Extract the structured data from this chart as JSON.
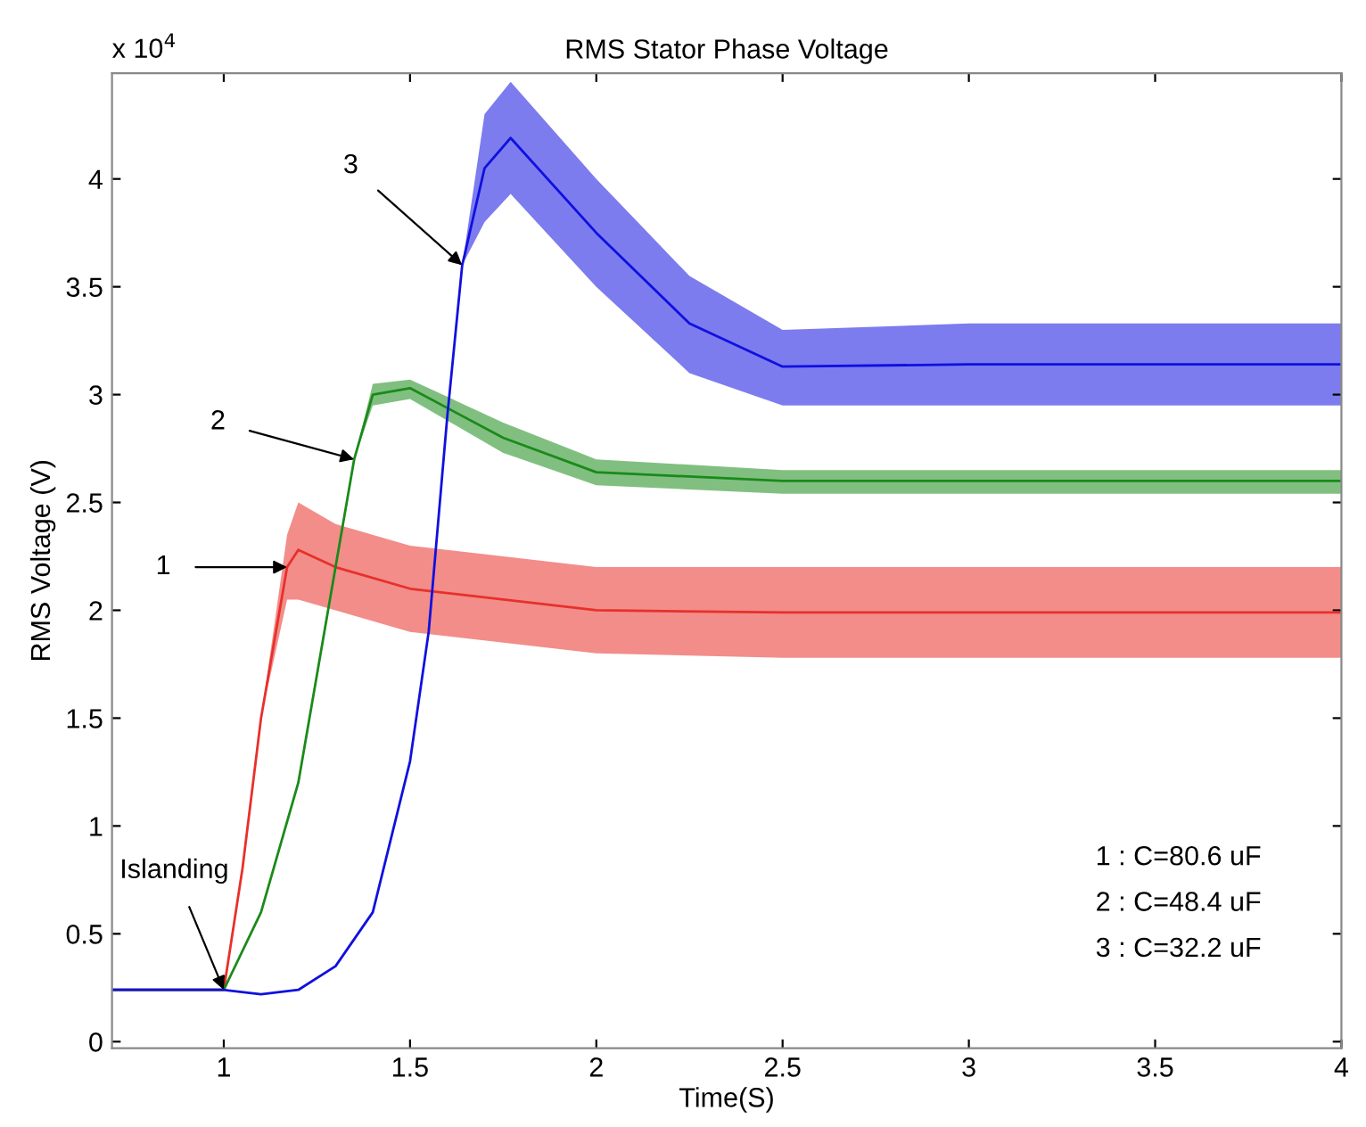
{
  "chart_data": {
    "type": "line",
    "title": "RMS Stator Phase Voltage",
    "xlabel": "Time(S)",
    "ylabel": "RMS Voltage (V)",
    "xlim": [
      0.7,
      4
    ],
    "xticks": [
      1,
      1.5,
      2,
      2.5,
      3,
      3.5,
      4
    ],
    "ylim": [
      -0.03,
      4.49
    ],
    "yticks": [
      0,
      0.5,
      1,
      1.5,
      2,
      2.5,
      3,
      3.5,
      4
    ],
    "grid": false,
    "legend": false,
    "marker": "none",
    "line_style": "solid",
    "series": [
      {
        "color": "#e8302a",
        "x": [
          0.7,
          1.0,
          1.05,
          1.1,
          1.17,
          1.2,
          1.3,
          1.5,
          2.0,
          2.5,
          3.0,
          3.5,
          4.0
        ],
        "values": [
          0.24,
          0.24,
          0.8,
          1.5,
          2.2,
          2.28,
          2.2,
          2.1,
          2.0,
          1.99,
          1.99,
          1.99,
          1.99
        ],
        "lower": [
          0.24,
          0.24,
          0.8,
          1.5,
          2.05,
          2.05,
          2.0,
          1.9,
          1.8,
          1.78,
          1.78,
          1.78,
          1.78
        ],
        "upper": [
          0.24,
          0.24,
          0.8,
          1.5,
          2.35,
          2.5,
          2.4,
          2.3,
          2.2,
          2.2,
          2.2,
          2.2,
          2.2
        ]
      },
      {
        "color": "#1a8a1a",
        "x": [
          0.7,
          1.0,
          1.1,
          1.2,
          1.25,
          1.3,
          1.35,
          1.4,
          1.5,
          1.75,
          2.0,
          2.5,
          3.0,
          3.5,
          4.0
        ],
        "values": [
          0.24,
          0.24,
          0.6,
          1.2,
          1.7,
          2.2,
          2.7,
          3.0,
          3.03,
          2.8,
          2.64,
          2.6,
          2.6,
          2.6,
          2.6
        ],
        "lower": [
          0.24,
          0.24,
          0.6,
          1.2,
          1.7,
          2.2,
          2.7,
          2.95,
          2.98,
          2.73,
          2.58,
          2.54,
          2.54,
          2.54,
          2.54
        ],
        "upper": [
          0.24,
          0.24,
          0.6,
          1.2,
          1.7,
          2.2,
          2.7,
          3.05,
          3.07,
          2.87,
          2.7,
          2.65,
          2.65,
          2.65,
          2.65
        ]
      },
      {
        "color": "#1010e0",
        "x": [
          0.7,
          1.0,
          1.1,
          1.2,
          1.3,
          1.4,
          1.5,
          1.55,
          1.6,
          1.64,
          1.7,
          1.77,
          2.0,
          2.25,
          2.5,
          3.0,
          3.5,
          4.0
        ],
        "values": [
          0.24,
          0.24,
          0.22,
          0.24,
          0.35,
          0.6,
          1.3,
          1.9,
          2.9,
          3.6,
          4.05,
          4.19,
          3.75,
          3.33,
          3.13,
          3.14,
          3.14,
          3.14
        ],
        "lower": [
          0.24,
          0.24,
          0.22,
          0.24,
          0.35,
          0.6,
          1.3,
          1.9,
          2.9,
          3.6,
          3.8,
          3.93,
          3.5,
          3.1,
          2.95,
          2.95,
          2.95,
          2.95
        ],
        "upper": [
          0.24,
          0.24,
          0.22,
          0.24,
          0.35,
          0.6,
          1.3,
          1.9,
          2.9,
          3.6,
          4.3,
          4.45,
          4.0,
          3.55,
          3.3,
          3.33,
          3.33,
          3.33
        ]
      }
    ],
    "annotations": [
      "x 10$^{4}$",
      {
        "text": "3",
        "x": 1.64,
        "y": 3.6
      },
      {
        "text": "2",
        "x": 1.35,
        "y": 2.7
      },
      {
        "text": "1",
        "x": 1.17,
        "y": 2.2
      },
      {
        "text": "Islanding",
        "x": 1.0,
        "y": 0.24
      },
      "1 : C=80.6 uF",
      "2 : C=48.4 uF",
      "3 : C=32.2 uF"
    ]
  }
}
